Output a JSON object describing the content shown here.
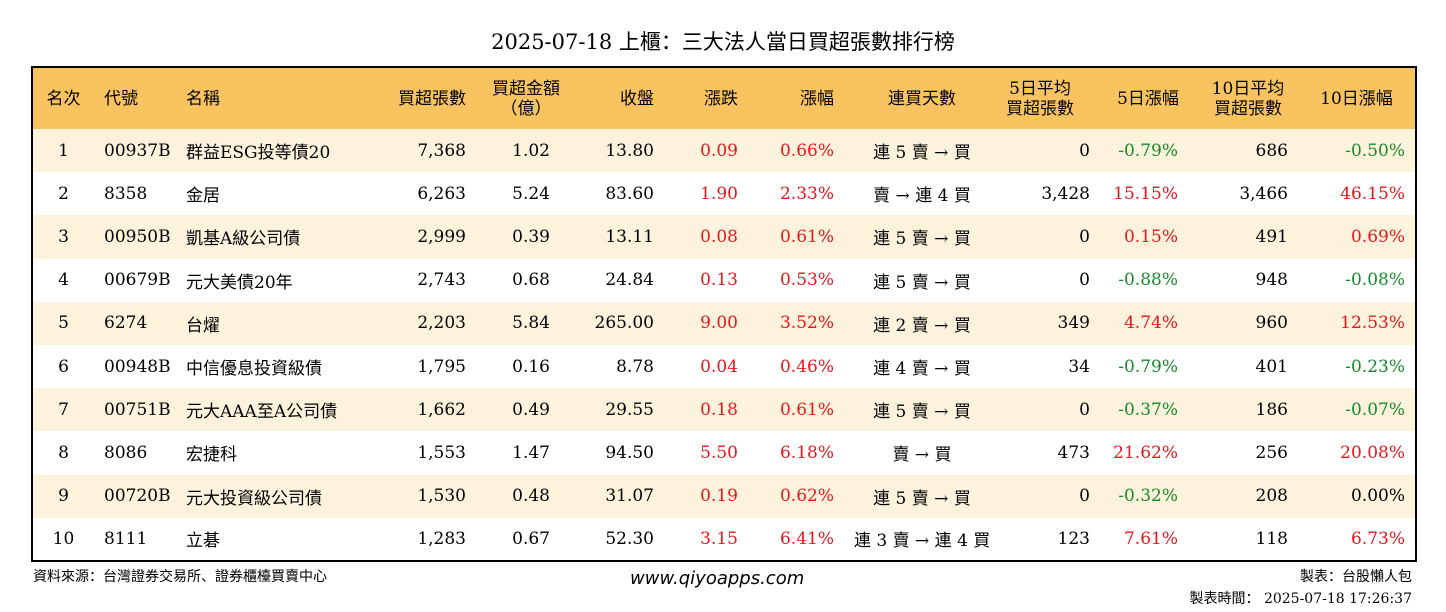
{
  "title": "2025-07-18 上櫃：三大法人當日買超張數排行榜",
  "headers": [
    "名次",
    "代號",
    "名稱",
    "買超張數",
    "買超金額\n（億）",
    "收盤",
    "漲跌",
    "漲幅",
    "連買天數",
    "5日平均\n買超張數",
    "5日漲幅",
    "10日平均\n買超張數",
    "10日漲幅"
  ],
  "rows": [
    {
      "rank": "1",
      "code": "00937B",
      "name": "群益ESG投等債20",
      "net_buy": "7,368",
      "amount": "1.02",
      "close": "13.80",
      "change": "0.09",
      "pct": "0.66%",
      "streak": "連 5 賣 → 買",
      "avg5": "0",
      "pct5": "-0.79%",
      "avg10": "686",
      "pct10": "-0.50%",
      "c5": "green",
      "c10": "green"
    },
    {
      "rank": "2",
      "code": "8358",
      "name": "金居",
      "net_buy": "6,263",
      "amount": "5.24",
      "close": "83.60",
      "change": "1.90",
      "pct": "2.33%",
      "streak": "賣 → 連 4 買",
      "avg5": "3,428",
      "pct5": "15.15%",
      "avg10": "3,466",
      "pct10": "46.15%",
      "c5": "red",
      "c10": "red"
    },
    {
      "rank": "3",
      "code": "00950B",
      "name": "凱基A級公司債",
      "net_buy": "2,999",
      "amount": "0.39",
      "close": "13.11",
      "change": "0.08",
      "pct": "0.61%",
      "streak": "連 5 賣 → 買",
      "avg5": "0",
      "pct5": "0.15%",
      "avg10": "491",
      "pct10": "0.69%",
      "c5": "red",
      "c10": "red"
    },
    {
      "rank": "4",
      "code": "00679B",
      "name": "元大美債20年",
      "net_buy": "2,743",
      "amount": "0.68",
      "close": "24.84",
      "change": "0.13",
      "pct": "0.53%",
      "streak": "連 5 賣 → 買",
      "avg5": "0",
      "pct5": "-0.88%",
      "avg10": "948",
      "pct10": "-0.08%",
      "c5": "green",
      "c10": "green"
    },
    {
      "rank": "5",
      "code": "6274",
      "name": "台燿",
      "net_buy": "2,203",
      "amount": "5.84",
      "close": "265.00",
      "change": "9.00",
      "pct": "3.52%",
      "streak": "連 2 賣 → 買",
      "avg5": "349",
      "pct5": "4.74%",
      "avg10": "960",
      "pct10": "12.53%",
      "c5": "red",
      "c10": "red"
    },
    {
      "rank": "6",
      "code": "00948B",
      "name": "中信優息投資級債",
      "net_buy": "1,795",
      "amount": "0.16",
      "close": "8.78",
      "change": "0.04",
      "pct": "0.46%",
      "streak": "連 4 賣 → 買",
      "avg5": "34",
      "pct5": "-0.79%",
      "avg10": "401",
      "pct10": "-0.23%",
      "c5": "green",
      "c10": "green"
    },
    {
      "rank": "7",
      "code": "00751B",
      "name": "元大AAA至A公司債",
      "net_buy": "1,662",
      "amount": "0.49",
      "close": "29.55",
      "change": "0.18",
      "pct": "0.61%",
      "streak": "連 5 賣 → 買",
      "avg5": "0",
      "pct5": "-0.37%",
      "avg10": "186",
      "pct10": "-0.07%",
      "c5": "green",
      "c10": "green"
    },
    {
      "rank": "8",
      "code": "8086",
      "name": "宏捷科",
      "net_buy": "1,553",
      "amount": "1.47",
      "close": "94.50",
      "change": "5.50",
      "pct": "6.18%",
      "streak": "賣 → 買",
      "avg5": "473",
      "pct5": "21.62%",
      "avg10": "256",
      "pct10": "20.08%",
      "c5": "red",
      "c10": "red"
    },
    {
      "rank": "9",
      "code": "00720B",
      "name": "元大投資級公司債",
      "net_buy": "1,530",
      "amount": "0.48",
      "close": "31.07",
      "change": "0.19",
      "pct": "0.62%",
      "streak": "連 5 賣 → 買",
      "avg5": "0",
      "pct5": "-0.32%",
      "avg10": "208",
      "pct10": "0.00%",
      "c5": "green",
      "c10": "black"
    },
    {
      "rank": "10",
      "code": "8111",
      "name": "立碁",
      "net_buy": "1,283",
      "amount": "0.67",
      "close": "52.30",
      "change": "3.15",
      "pct": "6.41%",
      "streak": "連 3 賣 → 連 4 買",
      "avg5": "123",
      "pct5": "7.61%",
      "avg10": "118",
      "pct10": "6.73%",
      "c5": "red",
      "c10": "red"
    }
  ],
  "footer": {
    "source": "資料來源：台灣證券交易所、證券櫃檯買賣中心",
    "website": "www.qiyoapps.com",
    "maker": "製表：台股懶人包",
    "time": "製表時間： 2025-07-18 17:26:37"
  },
  "colors": {
    "header_bg": "#f9c45f",
    "odd_row_bg": "#fdf3dc",
    "up": "#e8161b",
    "down": "#168a2a"
  }
}
